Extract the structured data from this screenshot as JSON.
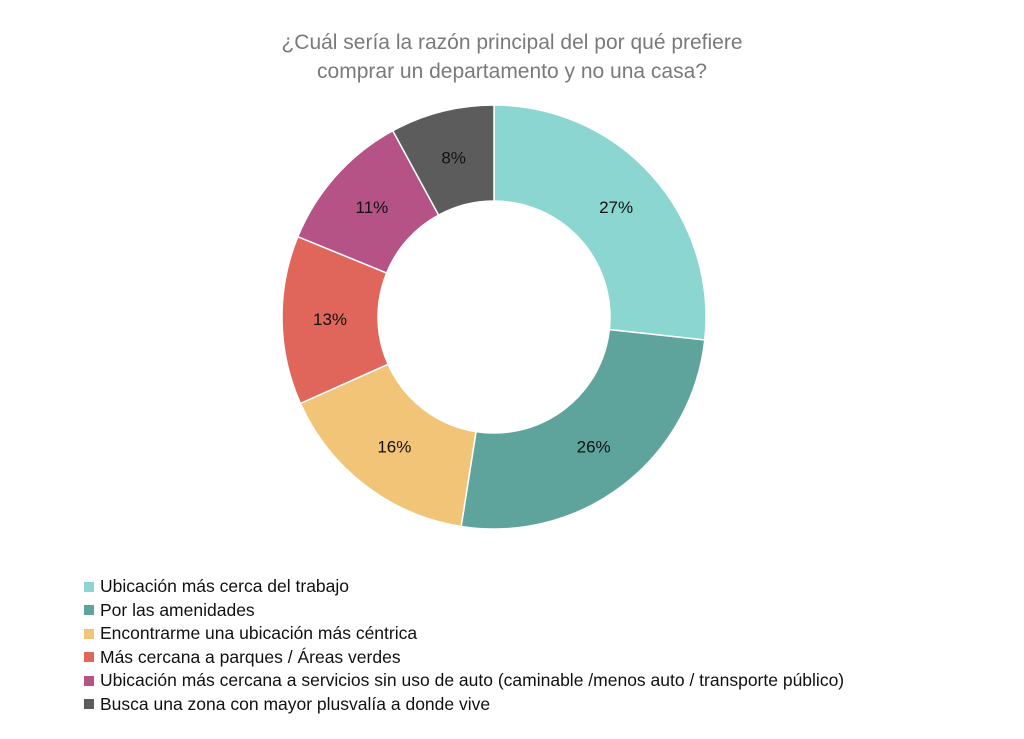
{
  "chart_data": {
    "type": "pie",
    "variant": "donut",
    "title_lines": [
      "¿Cuál sería la razón principal del por qué prefiere",
      "comprar un departamento y no una casa?"
    ],
    "slices": [
      {
        "label": "Ubicación más cerca del trabajo",
        "value": 27,
        "value_label": "27%",
        "color": "#8cd6d1"
      },
      {
        "label": "Por las amenidades",
        "value": 26,
        "value_label": "26%",
        "color": "#5fa39d"
      },
      {
        "label": "Encontrarme una ubicación más céntrica",
        "value": 16,
        "value_label": "16%",
        "color": "#f2c477"
      },
      {
        "label": "Más cercana a parques / Áreas verdes",
        "value": 13,
        "value_label": "13%",
        "color": "#e0655a"
      },
      {
        "label": "Ubicación más cercana a servicios sin uso de auto (caminable /menos auto / transporte público)",
        "value": 11,
        "value_label": "11%",
        "color": "#b55286"
      },
      {
        "label": "Busca una zona con mayor plusvalía a donde vive",
        "value": 8,
        "value_label": "8%",
        "color": "#5c5c5c"
      }
    ],
    "legend_position": "bottom-left"
  }
}
